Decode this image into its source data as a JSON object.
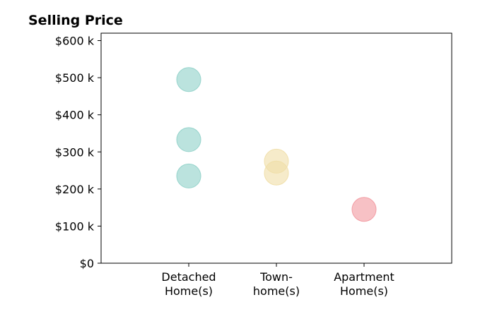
{
  "chart_data": {
    "type": "scatter",
    "title": "Selling Price",
    "xlabel": "",
    "ylabel": "",
    "categories": [
      {
        "lines": [
          "Detached",
          "Home(s)"
        ],
        "color": "#8ed0c8"
      },
      {
        "lines": [
          "Town-",
          "home(s)"
        ],
        "color": "#f0dea6"
      },
      {
        "lines": [
          "Apartment",
          "Home(s)"
        ],
        "color": "#f2979e"
      }
    ],
    "points": [
      {
        "category": 0,
        "value": 495000
      },
      {
        "category": 0,
        "value": 333000
      },
      {
        "category": 0,
        "value": 235000
      },
      {
        "category": 1,
        "value": 275000
      },
      {
        "category": 1,
        "value": 243000
      },
      {
        "category": 2,
        "value": 145000
      }
    ],
    "ylim": [
      0,
      620000
    ],
    "y_ticks": [
      0,
      100000,
      200000,
      300000,
      400000,
      500000,
      600000
    ],
    "y_tick_labels": [
      "$0",
      "$100 k",
      "$200 k",
      "$300 k",
      "$400 k",
      "$500 k",
      "$600 k"
    ],
    "grid": false,
    "marker_opacity": 0.6
  }
}
